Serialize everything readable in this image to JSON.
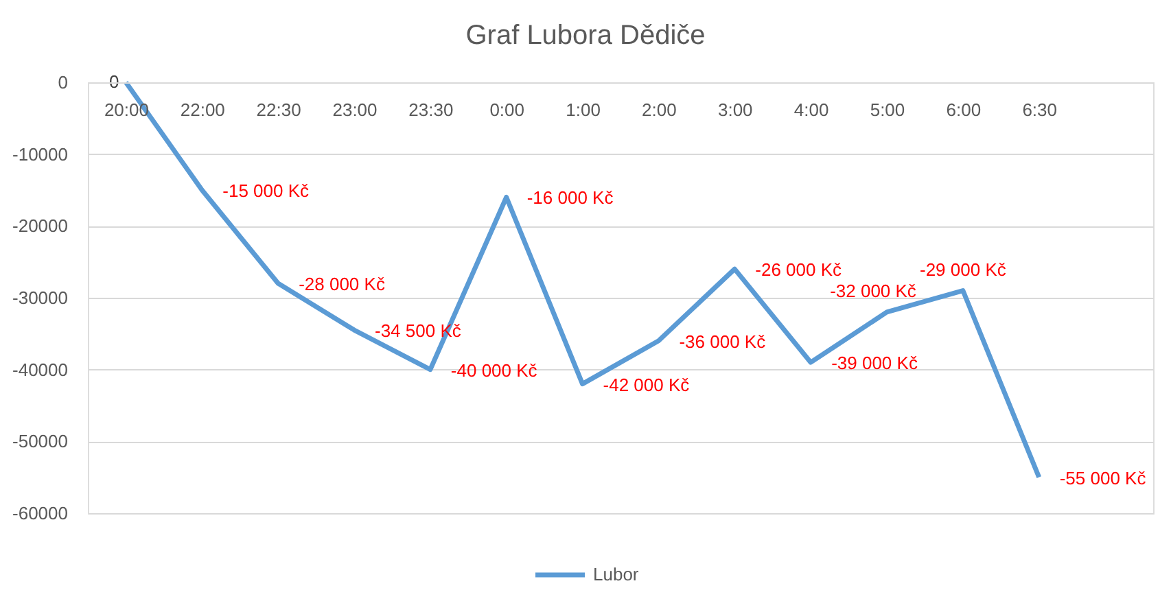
{
  "chart_data": {
    "type": "line",
    "title": "Graf Lubora Dědiče",
    "categories": [
      "20:00",
      "22:00",
      "22:30",
      "23:00",
      "23:30",
      "0:00",
      "1:00",
      "2:00",
      "3:00",
      "4:00",
      "5:00",
      "6:00",
      "6:30",
      null
    ],
    "series": [
      {
        "name": "Lubor",
        "color": "#5b9bd5",
        "values": [
          0,
          -15000,
          -28000,
          -34500,
          -40000,
          -16000,
          -42000,
          -36000,
          -26000,
          -39000,
          -32000,
          -29000,
          -55000,
          null
        ],
        "value_labels": [
          "0",
          "-15 000 Kč",
          "-28 000 Kč",
          "-34 500 Kč",
          "-40 000 Kč",
          "-16 000 Kč",
          "-42 000 Kč",
          "-36 000 Kč",
          "-26 000 Kč",
          "-39 000 Kč",
          "-32 000 Kč",
          "-29 000 Kč",
          "-55 000 Kč",
          null
        ]
      }
    ],
    "ylim": [
      -60000,
      0
    ],
    "yticks": [
      0,
      -10000,
      -20000,
      -30000,
      -40000,
      -50000,
      -60000
    ],
    "grid": "y",
    "legend": "bottom",
    "line_style": "solid"
  }
}
